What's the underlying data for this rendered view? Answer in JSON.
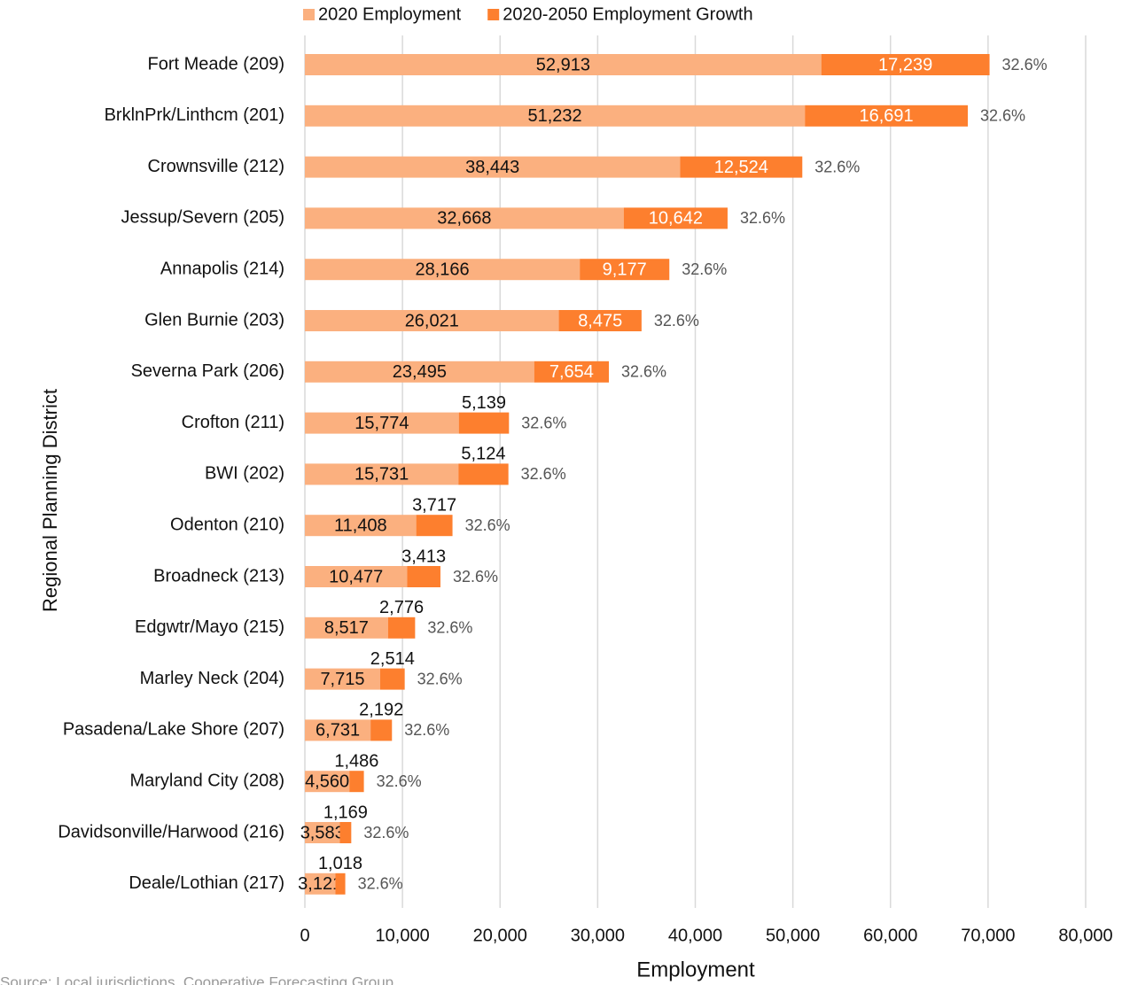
{
  "chart_data": {
    "type": "stacked_barh",
    "xlabel": "Employment",
    "ylabel": "Regional Planning District",
    "source": "Source: Local jurisdictions, Cooperative Forecasting Group",
    "categories": [
      "Fort Meade (209)",
      "BrklnPrk/Linthcm (201)",
      "Crownsville (212)",
      "Jessup/Severn (205)",
      "Annapolis (214)",
      "Glen Burnie (203)",
      "Severna Park (206)",
      "Crofton (211)",
      "BWI (202)",
      "Odenton (210)",
      "Broadneck (213)",
      "Edgwtr/Mayo (215)",
      "Marley Neck (204)",
      "Pasadena/Lake Shore (207)",
      "Maryland City (208)",
      "Davidsonville/Harwood (216)",
      "Deale/Lothian (217)"
    ],
    "series": [
      {
        "name": "2020 Employment",
        "color": "#fbb07f",
        "values": [
          52913,
          51232,
          38443,
          32668,
          28166,
          26021,
          23495,
          15774,
          15731,
          11408,
          10477,
          8517,
          7715,
          6731,
          4560,
          3583,
          3121
        ],
        "value_labels": [
          "52,913",
          "51,232",
          "38,443",
          "32,668",
          "28,166",
          "26,021",
          "23,495",
          "15,774",
          "15,731",
          "11,408",
          "10,477",
          "8,517",
          "7,715",
          "6,731",
          "4,560",
          "3,583",
          "3,121"
        ]
      },
      {
        "name": "2020-2050 Employment Growth",
        "color": "#fd7f2e",
        "values": [
          17239,
          16691,
          12524,
          10642,
          9177,
          8475,
          7654,
          5139,
          5124,
          3717,
          3413,
          2776,
          2514,
          2192,
          1486,
          1169,
          1018
        ],
        "value_labels": [
          "17,239",
          "16,691",
          "12,524",
          "10,642",
          "9,177",
          "8,475",
          "7,654",
          "5,139",
          "5,124",
          "3,717",
          "3,413",
          "2,776",
          "2,514",
          "2,192",
          "1,486",
          "1,169",
          "1,018"
        ]
      }
    ],
    "annotations": [
      "32.6%",
      "32.6%",
      "32.6%",
      "32.6%",
      "32.6%",
      "32.6%",
      "32.6%",
      "32.6%",
      "32.6%",
      "32.6%",
      "32.6%",
      "32.6%",
      "32.6%",
      "32.6%",
      "32.6%",
      "32.6%",
      "32.6%"
    ],
    "xlim": [
      0,
      80000
    ],
    "xticks": [
      0,
      {
        "value": 10000,
        "label": "10,000"
      },
      {
        "value": 20000,
        "label": "20,000"
      },
      {
        "value": 30000,
        "label": "30,000"
      },
      {
        "value": 40000,
        "label": "40,000"
      },
      {
        "value": 50000,
        "label": "50,000"
      },
      {
        "value": 60000,
        "label": "60,000"
      },
      {
        "value": 70000,
        "label": "70,000"
      },
      {
        "value": 80000,
        "label": "80,000"
      }
    ],
    "grid": true,
    "legend": "top"
  }
}
